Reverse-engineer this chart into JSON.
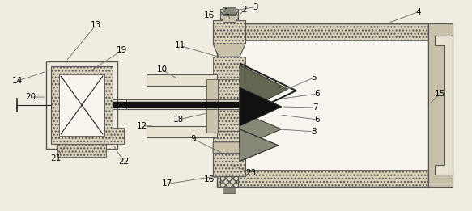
{
  "bg_color": "#f0ece0",
  "lc": "#555555",
  "dc": "#222222",
  "fl": "#e8e2d0",
  "fm": "#c8c0a8",
  "fdk": "#888878",
  "fbk": "#111111",
  "hc": "#d8d0b8",
  "gray_med": "#999988",
  "white": "#f8f5ee",
  "figw": 5.83,
  "figh": 2.61,
  "dpi": 100
}
